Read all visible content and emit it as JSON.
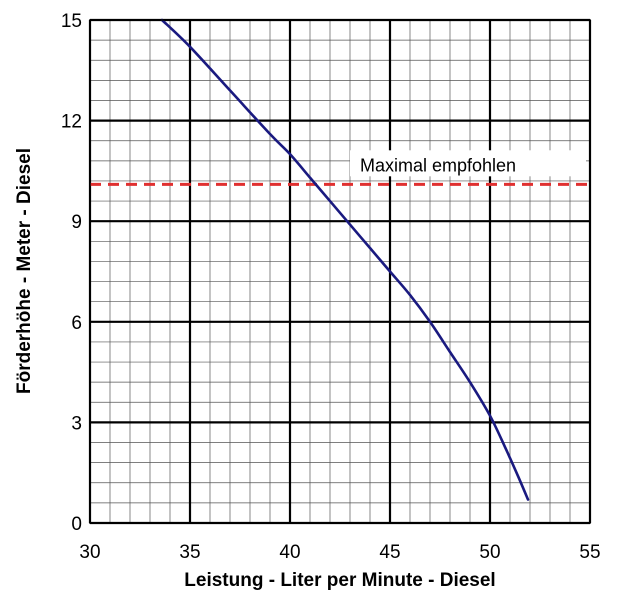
{
  "chart_data": {
    "type": "line",
    "xlabel": "Leistung - Liter per Minute - Diesel",
    "ylabel": "Förderhöhe - Meter - Diesel",
    "xlim": [
      30,
      55
    ],
    "ylim": [
      0,
      15
    ],
    "x_ticks": [
      30,
      35,
      40,
      45,
      50,
      55
    ],
    "y_ticks": [
      0,
      3,
      6,
      9,
      12,
      15
    ],
    "x_tick_labels": [
      "30",
      "35",
      "40",
      "45",
      "50",
      "55"
    ],
    "y_tick_labels": [
      "0",
      "3",
      "6",
      "9",
      "12",
      "15"
    ],
    "minor_x_step": 1,
    "minor_y_step": 0.6,
    "grid": true,
    "series": [
      {
        "color": "#1a1a80",
        "x": [
          33.6,
          35.0,
          37.0,
          39.0,
          40.0,
          41.0,
          42.0,
          43.0,
          44.0,
          45.0,
          46.0,
          47.0,
          48.0,
          49.0,
          50.0,
          50.8,
          51.4,
          51.9
        ],
        "y": [
          15.0,
          14.2,
          12.9,
          11.6,
          11.0,
          10.3,
          9.6,
          8.9,
          8.2,
          7.5,
          6.8,
          6.0,
          5.1,
          4.2,
          3.2,
          2.2,
          1.4,
          0.7
        ]
      }
    ],
    "reference_lines": [
      {
        "y": 10.1,
        "color": "#e03030",
        "style": "dashed",
        "label": "Maximal empfohlen"
      }
    ]
  }
}
